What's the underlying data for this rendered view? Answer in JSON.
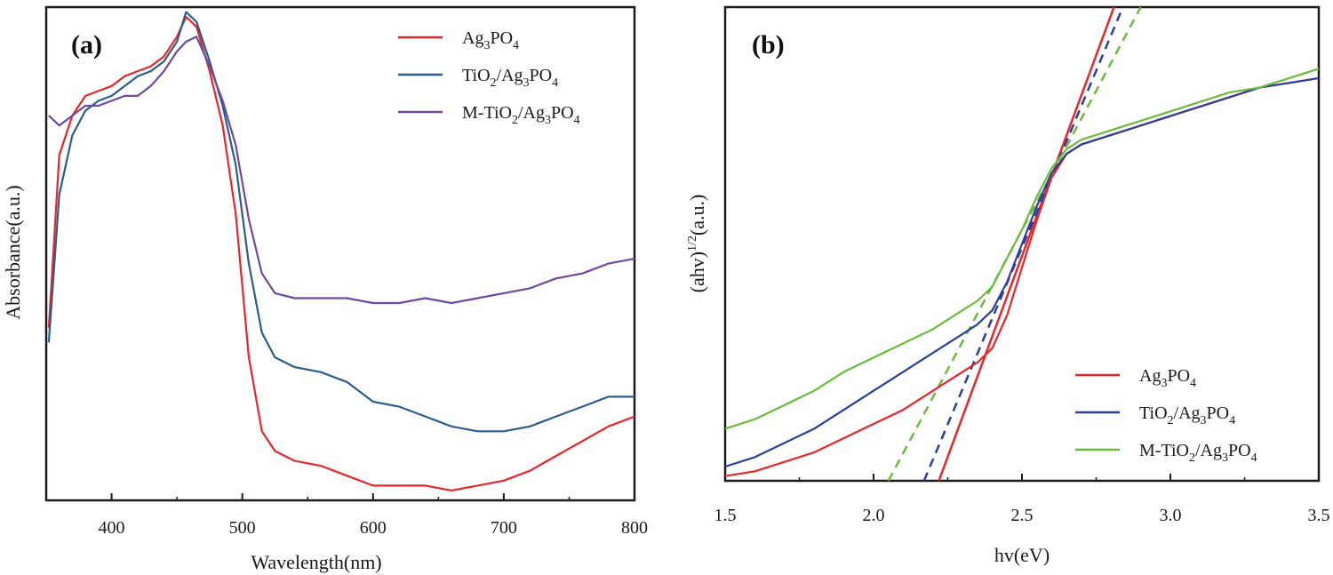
{
  "chart_data": [
    {
      "type": "line",
      "panel_label": "(a)",
      "xlabel": "Wavelength(nm)",
      "ylabel": "Absorbance(a.u.)",
      "xlim": [
        350,
        800
      ],
      "ylim": [
        0,
        1.0
      ],
      "x_ticks": [
        400,
        500,
        600,
        700,
        800
      ],
      "y_ticks_shown": false,
      "legend_position": "top-right",
      "series": [
        {
          "name": "Ag₃PO₄",
          "legend_label": {
            "parts": [
              "Ag",
              "3",
              "PO",
              "4"
            ]
          },
          "color": "#e8262b",
          "x": [
            352,
            360,
            370,
            380,
            390,
            400,
            410,
            420,
            430,
            440,
            450,
            457,
            465,
            475,
            485,
            495,
            505,
            515,
            525,
            540,
            560,
            580,
            600,
            620,
            640,
            660,
            680,
            700,
            720,
            740,
            760,
            780,
            800
          ],
          "y": [
            0.35,
            0.7,
            0.78,
            0.82,
            0.83,
            0.84,
            0.86,
            0.87,
            0.88,
            0.9,
            0.94,
            0.98,
            0.96,
            0.87,
            0.76,
            0.58,
            0.29,
            0.14,
            0.1,
            0.08,
            0.07,
            0.05,
            0.03,
            0.03,
            0.03,
            0.02,
            0.03,
            0.04,
            0.06,
            0.09,
            0.12,
            0.15,
            0.17
          ]
        },
        {
          "name": "TiO₂/Ag₃PO₄",
          "legend_label": {
            "parts": [
              "TiO",
              "2",
              "/Ag",
              "3",
              "PO",
              "4"
            ]
          },
          "color": "#2a5d8a",
          "x": [
            352,
            360,
            370,
            380,
            390,
            400,
            410,
            420,
            430,
            440,
            450,
            457,
            465,
            475,
            485,
            495,
            505,
            515,
            525,
            540,
            560,
            580,
            600,
            620,
            640,
            660,
            680,
            700,
            720,
            740,
            760,
            780,
            800
          ],
          "y": [
            0.32,
            0.62,
            0.74,
            0.79,
            0.81,
            0.82,
            0.84,
            0.86,
            0.87,
            0.89,
            0.93,
            0.99,
            0.97,
            0.89,
            0.8,
            0.68,
            0.48,
            0.34,
            0.29,
            0.27,
            0.26,
            0.24,
            0.2,
            0.19,
            0.17,
            0.15,
            0.14,
            0.14,
            0.15,
            0.17,
            0.19,
            0.21,
            0.21
          ]
        },
        {
          "name": "M-TiO₂/Ag₃PO₄",
          "legend_label": {
            "parts": [
              "M-TiO",
              "2",
              "/Ag",
              "3",
              "PO",
              "4"
            ]
          },
          "color": "#6e4a9e",
          "x": [
            352,
            360,
            370,
            380,
            390,
            400,
            410,
            420,
            430,
            440,
            450,
            457,
            465,
            475,
            485,
            495,
            505,
            515,
            525,
            540,
            560,
            580,
            600,
            620,
            640,
            660,
            680,
            700,
            720,
            740,
            760,
            780,
            800
          ],
          "y": [
            0.78,
            0.76,
            0.78,
            0.8,
            0.8,
            0.81,
            0.82,
            0.82,
            0.84,
            0.87,
            0.91,
            0.93,
            0.94,
            0.88,
            0.81,
            0.72,
            0.57,
            0.46,
            0.42,
            0.41,
            0.41,
            0.41,
            0.4,
            0.4,
            0.41,
            0.4,
            0.41,
            0.42,
            0.43,
            0.45,
            0.46,
            0.48,
            0.49
          ]
        }
      ]
    },
    {
      "type": "line",
      "panel_label": "(b)",
      "xlabel": "hv(eV)",
      "ylabel_main": "(ahv)",
      "ylabel_sup": "1/2",
      "ylabel_unit": "(a.u.)",
      "xlim": [
        1.5,
        3.5
      ],
      "ylim": [
        0,
        1.0
      ],
      "x_ticks": [
        1.5,
        2.0,
        2.5,
        3.0,
        3.5
      ],
      "x_tick_labels": [
        "1.5",
        "2.0",
        "2.5",
        "3.0",
        "3.5"
      ],
      "y_ticks_shown": false,
      "legend_position": "bottom-right",
      "series": [
        {
          "name": "Ag₃PO₄",
          "legend_label": {
            "parts": [
              "Ag",
              "3",
              "PO",
              "4"
            ]
          },
          "color": "#e8262b",
          "x": [
            1.5,
            1.6,
            1.7,
            1.8,
            1.9,
            2.0,
            2.1,
            2.2,
            2.3,
            2.35,
            2.4,
            2.45,
            2.5,
            2.55,
            2.6,
            2.65,
            2.7,
            2.8,
            2.9,
            3.0,
            3.1,
            3.2,
            3.3,
            3.4,
            3.5
          ],
          "y": [
            0.01,
            0.02,
            0.04,
            0.06,
            0.09,
            0.12,
            0.15,
            0.19,
            0.23,
            0.25,
            0.28,
            0.35,
            0.45,
            0.55,
            0.64,
            0.69,
            0.71,
            0.73,
            0.75,
            0.77,
            0.79,
            0.81,
            0.83,
            0.84,
            0.85
          ]
        },
        {
          "name": "TiO₂/Ag₃PO₄",
          "legend_label": {
            "parts": [
              "TiO",
              "2",
              "/Ag",
              "3",
              "PO",
              "4"
            ]
          },
          "color": "#2b3f9a",
          "x": [
            1.5,
            1.6,
            1.7,
            1.8,
            1.9,
            2.0,
            2.1,
            2.2,
            2.3,
            2.35,
            2.4,
            2.45,
            2.5,
            2.55,
            2.6,
            2.65,
            2.7,
            2.8,
            2.9,
            3.0,
            3.1,
            3.2,
            3.3,
            3.4,
            3.5
          ],
          "y": [
            0.03,
            0.05,
            0.08,
            0.11,
            0.15,
            0.19,
            0.23,
            0.27,
            0.31,
            0.33,
            0.36,
            0.42,
            0.5,
            0.58,
            0.65,
            0.69,
            0.71,
            0.73,
            0.75,
            0.77,
            0.79,
            0.81,
            0.83,
            0.84,
            0.85
          ]
        },
        {
          "name": "M-TiO₂/Ag₃PO₄",
          "legend_label": {
            "parts": [
              "M-TiO",
              "2",
              "/Ag",
              "3",
              "PO",
              "4"
            ]
          },
          "color": "#6dbb3c",
          "x": [
            1.5,
            1.6,
            1.7,
            1.8,
            1.9,
            2.0,
            2.1,
            2.2,
            2.3,
            2.35,
            2.4,
            2.45,
            2.5,
            2.55,
            2.6,
            2.65,
            2.7,
            2.8,
            2.9,
            3.0,
            3.1,
            3.2,
            3.3,
            3.4,
            3.5
          ],
          "y": [
            0.11,
            0.13,
            0.16,
            0.19,
            0.23,
            0.26,
            0.29,
            0.32,
            0.36,
            0.38,
            0.41,
            0.47,
            0.53,
            0.6,
            0.66,
            0.7,
            0.72,
            0.74,
            0.76,
            0.78,
            0.8,
            0.82,
            0.83,
            0.85,
            0.87
          ]
        }
      ],
      "tangent_lines": [
        {
          "series": "Ag₃PO₄",
          "style": "solid",
          "color": "#e8262b",
          "x": [
            2.22,
            2.81
          ],
          "y": [
            0.0,
            1.0
          ]
        },
        {
          "series": "TiO₂/Ag₃PO₄",
          "style": "dashed",
          "color": "#2b3f9a",
          "x": [
            2.17,
            2.84
          ],
          "y": [
            0.0,
            1.0
          ]
        },
        {
          "series": "M-TiO₂/Ag₃PO₄",
          "style": "dashed",
          "color": "#6dbb3c",
          "x": [
            2.05,
            2.9
          ],
          "y": [
            0.0,
            1.0
          ]
        }
      ]
    }
  ]
}
